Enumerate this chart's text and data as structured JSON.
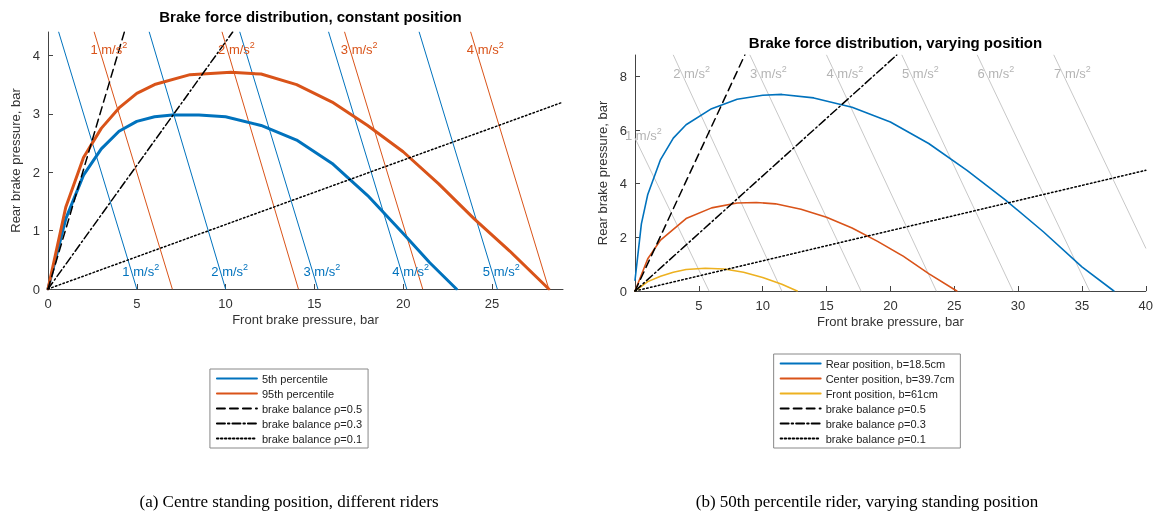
{
  "chart_data": [
    {
      "type": "line",
      "title": "Brake force distribution, constant position",
      "xlabel": "Front brake pressure, bar",
      "ylabel": "Rear brake pressure, bar",
      "xlim": [
        0,
        29
      ],
      "ylim": [
        0,
        4.4
      ],
      "xticks": [
        0,
        5,
        10,
        15,
        20,
        25
      ],
      "yticks": [
        0,
        1,
        2,
        3,
        4
      ],
      "grid": false,
      "marker": "none",
      "legend": "bottom",
      "series": [
        {
          "name": "5th percentile",
          "color": "#0072bd",
          "x": [
            0,
            1,
            2,
            3,
            4,
            5,
            6,
            7,
            8.5,
            10,
            12,
            14,
            16,
            18,
            20,
            21.5,
            23
          ],
          "values": [
            0,
            1.2,
            1.95,
            2.4,
            2.7,
            2.87,
            2.95,
            2.98,
            2.98,
            2.95,
            2.8,
            2.55,
            2.15,
            1.6,
            0.95,
            0.45,
            0
          ]
        },
        {
          "name": "95th percentile",
          "color": "#d95319",
          "x": [
            0,
            1,
            2,
            3,
            4,
            5,
            6,
            8,
            10.3,
            12,
            14,
            16,
            18,
            20,
            22,
            24,
            26,
            28.2
          ],
          "values": [
            0,
            1.4,
            2.25,
            2.75,
            3.1,
            3.35,
            3.5,
            3.67,
            3.71,
            3.68,
            3.5,
            3.2,
            2.8,
            2.35,
            1.8,
            1.2,
            0.65,
            0
          ]
        },
        {
          "name": "brake balance ρ=0.5",
          "color": "#000000",
          "line_style": "dashed",
          "x": [
            0,
            4.3
          ],
          "values": [
            0,
            4.4
          ]
        },
        {
          "name": "brake balance ρ=0.3",
          "color": "#000000",
          "line_style": "dashdot",
          "x": [
            0,
            10.4
          ],
          "values": [
            0,
            4.4
          ]
        },
        {
          "name": "brake balance ρ=0.1",
          "color": "#000000",
          "line_style": "dotted",
          "x": [
            0,
            29
          ],
          "values": [
            0,
            3.2
          ]
        },
        {
          "color": "#0072bd",
          "x": [
            0.6,
            5
          ],
          "values": [
            4.4,
            0
          ]
        },
        {
          "color": "#0072bd",
          "x": [
            5.7,
            10
          ],
          "values": [
            4.4,
            0
          ]
        },
        {
          "color": "#0072bd",
          "x": [
            10.8,
            15.2
          ],
          "values": [
            4.4,
            0
          ]
        },
        {
          "color": "#0072bd",
          "x": [
            15.8,
            20.2
          ],
          "values": [
            4.4,
            0
          ]
        },
        {
          "color": "#0072bd",
          "x": [
            20.9,
            25.3
          ],
          "values": [
            4.4,
            0
          ]
        },
        {
          "color": "#d95319",
          "x": [
            2.6,
            7
          ],
          "values": [
            4.4,
            0
          ]
        },
        {
          "color": "#d95319",
          "x": [
            9.8,
            14.1
          ],
          "values": [
            4.4,
            0
          ]
        },
        {
          "color": "#d95319",
          "x": [
            16.7,
            21.1
          ],
          "values": [
            4.4,
            0
          ]
        },
        {
          "color": "#d95319",
          "x": [
            23.8,
            28.2
          ],
          "values": [
            4.4,
            0
          ]
        }
      ],
      "annotations": [
        {
          "text": "1 m/s$^{2}$",
          "x": 4.75,
          "y": 0.25
        },
        {
          "text": "2 m/s$^{2}$",
          "x": 9.76,
          "y": 0.25
        },
        {
          "text": "3 m/s$^{2}$",
          "x": 14.95,
          "y": 0.25
        },
        {
          "text": "4 m/s$^{2}$",
          "x": 19.95,
          "y": 0.25
        },
        {
          "text": "5 m/s$^{2}$",
          "x": 25.05,
          "y": 0.25
        },
        {
          "text": "1 m/s$^{2}$",
          "x": 2.95,
          "y": 4.05
        },
        {
          "text": "2 m/s$^{2}$",
          "x": 10.14,
          "y": 4.05
        },
        {
          "text": "3 m/s$^{2}$",
          "x": 17.05,
          "y": 4.05
        },
        {
          "text": "4 m/s$^{2}$",
          "x": 24.15,
          "y": 4.05
        },
        "(a) Centre standing position, different riders"
      ]
    },
    {
      "type": "line",
      "title": "Brake force distribution, varying position",
      "xlabel": "Front brake pressure, bar",
      "ylabel": "Rear brake pressure, bar",
      "xlim": [
        0,
        40
      ],
      "ylim": [
        0,
        8.8
      ],
      "xticks": [
        5,
        10,
        15,
        20,
        25,
        30,
        35,
        40
      ],
      "yticks": [
        0,
        2,
        4,
        6,
        8
      ],
      "grid": false,
      "marker": "none",
      "legend": "bottom",
      "series": [
        {
          "name": "Rear position, b=18.5cm",
          "color": "#0072bd",
          "x": [
            0,
            0.5,
            1,
            2,
            3,
            4,
            6,
            8,
            10,
            11.5,
            14,
            17,
            20,
            23,
            26,
            29,
            32,
            35,
            37.5
          ],
          "values": [
            0.4,
            2.5,
            3.6,
            4.9,
            5.7,
            6.2,
            6.8,
            7.15,
            7.3,
            7.33,
            7.2,
            6.85,
            6.3,
            5.5,
            4.5,
            3.4,
            2.2,
            0.9,
            0
          ]
        },
        {
          "name": "Center position, b=39.7cm",
          "color": "#d95319",
          "x": [
            0,
            1,
            2,
            4,
            6,
            8,
            9.5,
            11,
            13,
            15,
            17,
            19,
            21,
            23,
            25.2
          ],
          "values": [
            0,
            1.2,
            1.9,
            2.7,
            3.1,
            3.28,
            3.3,
            3.25,
            3.05,
            2.75,
            2.35,
            1.85,
            1.3,
            0.65,
            0
          ]
        },
        {
          "name": "Front position, b=61cm",
          "color": "#edb120",
          "x": [
            0,
            1,
            2,
            3,
            4,
            5.5,
            7,
            8.5,
            10,
            11.5,
            12.7
          ],
          "values": [
            0,
            0.35,
            0.55,
            0.7,
            0.8,
            0.85,
            0.82,
            0.7,
            0.5,
            0.25,
            0
          ]
        },
        {
          "name": "brake balance ρ=0.5",
          "color": "#000000",
          "line_style": "dashed",
          "x": [
            0,
            8.6
          ],
          "values": [
            0,
            8.8
          ]
        },
        {
          "name": "brake balance ρ=0.3",
          "color": "#000000",
          "line_style": "dashdot",
          "x": [
            0,
            20.5
          ],
          "values": [
            0,
            8.8
          ]
        },
        {
          "name": "brake balance ρ=0.1",
          "color": "#000000",
          "line_style": "dotted",
          "x": [
            0,
            40
          ],
          "values": [
            0,
            4.5
          ]
        },
        {
          "color": "#c8c8c8",
          "x": [
            0,
            5.8
          ],
          "values": [
            5.7,
            0
          ]
        },
        {
          "color": "#c8c8c8",
          "x": [
            3,
            11.5
          ],
          "values": [
            8.8,
            0
          ]
        },
        {
          "color": "#c8c8c8",
          "x": [
            9,
            17.7
          ],
          "values": [
            8.8,
            0
          ]
        },
        {
          "color": "#c8c8c8",
          "x": [
            15,
            23.6
          ],
          "values": [
            8.8,
            0
          ]
        },
        {
          "color": "#c8c8c8",
          "x": [
            20.9,
            29.6
          ],
          "values": [
            8.8,
            0
          ]
        },
        {
          "color": "#c8c8c8",
          "x": [
            26.8,
            35.6
          ],
          "values": [
            8.8,
            0
          ]
        },
        {
          "color": "#c8c8c8",
          "x": [
            32.8,
            40
          ],
          "values": [
            8.8,
            1.6
          ]
        }
      ],
      "annotations": [
        {
          "text": "1 m/s$^{2}$",
          "x": 0,
          "y": 5.7
        },
        {
          "text": "2 m/s$^{2}$",
          "x": 3.77,
          "y": 8
        },
        {
          "text": "3 m/s$^{2}$",
          "x": 9.79,
          "y": 8
        },
        {
          "text": "4 m/s$^{2}$",
          "x": 15.78,
          "y": 8
        },
        {
          "text": "5 m/s$^{2}$",
          "x": 21.69,
          "y": 8
        },
        {
          "text": "6 m/s$^{2}$",
          "x": 27.6,
          "y": 8
        },
        {
          "text": "7 m/s$^{2}$",
          "x": 33.6,
          "y": 8
        },
        "(b) 50th percentile rider, varying standing position"
      ]
    }
  ]
}
